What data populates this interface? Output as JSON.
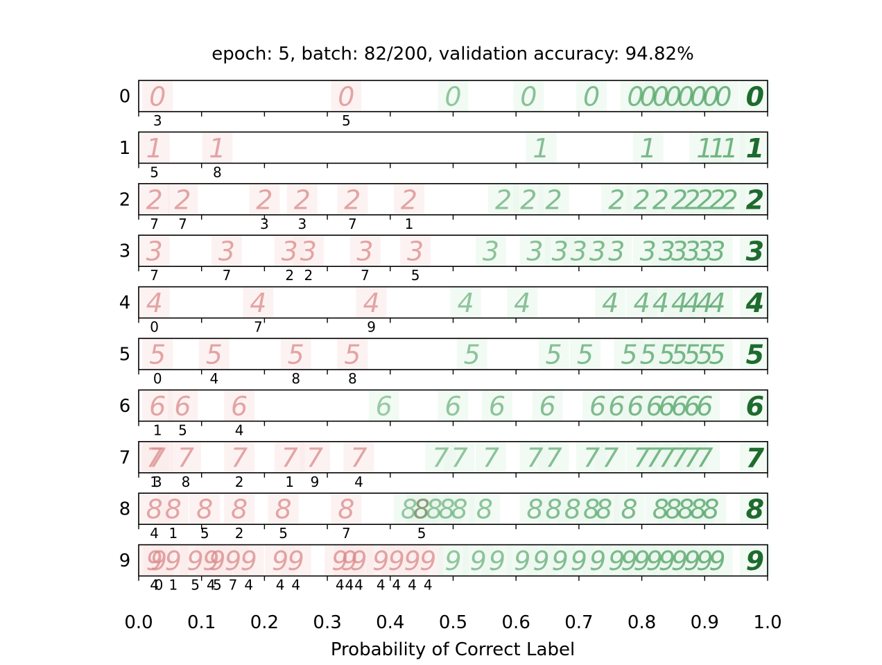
{
  "chart_data": {
    "type": "scatter",
    "title": "epoch: 5, batch: 82/200, validation accuracy: 94.82%",
    "xlabel": "Probability of Correct Label",
    "ylabel": "",
    "xlim": [
      0.0,
      1.0
    ],
    "x_ticks": [
      "0.0",
      "0.1",
      "0.2",
      "0.3",
      "0.4",
      "0.5",
      "0.6",
      "0.7",
      "0.8",
      "0.9",
      "1.0"
    ],
    "colors": {
      "wrong": "#d98a8a",
      "correct": "#3f9a56",
      "confident": "#1e6b2e"
    },
    "rows": [
      {
        "label": "0",
        "misclassified": [
          {
            "x": 0.03,
            "pred": "3"
          },
          {
            "x": 0.33,
            "pred": "5"
          }
        ],
        "correct_x": [
          0.5,
          0.62,
          0.72,
          0.79,
          0.81,
          0.83,
          0.85,
          0.87,
          0.89,
          0.91,
          0.93,
          0.98
        ]
      },
      {
        "label": "1",
        "misclassified": [
          {
            "x": 0.025,
            "pred": "5"
          },
          {
            "x": 0.125,
            "pred": "8"
          }
        ],
        "correct_x": [
          0.64,
          0.81,
          0.9,
          0.92,
          0.94,
          0.98
        ]
      },
      {
        "label": "2",
        "misclassified": [
          {
            "x": 0.025,
            "pred": "7"
          },
          {
            "x": 0.07,
            "pred": "7"
          },
          {
            "x": 0.2,
            "pred": "3"
          },
          {
            "x": 0.26,
            "pred": "3"
          },
          {
            "x": 0.34,
            "pred": "7"
          },
          {
            "x": 0.43,
            "pred": "1"
          }
        ],
        "correct_x": [
          0.58,
          0.62,
          0.66,
          0.76,
          0.8,
          0.83,
          0.86,
          0.88,
          0.9,
          0.92,
          0.94,
          0.98
        ]
      },
      {
        "label": "3",
        "misclassified": [
          {
            "x": 0.025,
            "pred": "7"
          },
          {
            "x": 0.14,
            "pred": "7"
          },
          {
            "x": 0.24,
            "pred": "2"
          },
          {
            "x": 0.27,
            "pred": "2"
          },
          {
            "x": 0.36,
            "pred": "7"
          },
          {
            "x": 0.44,
            "pred": "5"
          }
        ],
        "correct_x": [
          0.56,
          0.63,
          0.67,
          0.7,
          0.73,
          0.76,
          0.81,
          0.84,
          0.86,
          0.88,
          0.9,
          0.92,
          0.98
        ]
      },
      {
        "label": "4",
        "misclassified": [
          {
            "x": 0.025,
            "pred": "0"
          },
          {
            "x": 0.19,
            "pred": "7"
          },
          {
            "x": 0.37,
            "pred": "9"
          }
        ],
        "correct_x": [
          0.52,
          0.61,
          0.75,
          0.8,
          0.83,
          0.86,
          0.88,
          0.9,
          0.92,
          0.98
        ]
      },
      {
        "label": "5",
        "misclassified": [
          {
            "x": 0.03,
            "pred": "0"
          },
          {
            "x": 0.12,
            "pred": "4"
          },
          {
            "x": 0.25,
            "pred": "8"
          },
          {
            "x": 0.34,
            "pred": "8"
          }
        ],
        "correct_x": [
          0.53,
          0.66,
          0.71,
          0.78,
          0.81,
          0.84,
          0.86,
          0.88,
          0.9,
          0.92,
          0.98
        ]
      },
      {
        "label": "6",
        "misclassified": [
          {
            "x": 0.03,
            "pred": "1"
          },
          {
            "x": 0.07,
            "pred": "5"
          },
          {
            "x": 0.16,
            "pred": "4"
          }
        ],
        "correct_x": [
          0.39,
          0.5,
          0.57,
          0.65,
          0.73,
          0.76,
          0.79,
          0.82,
          0.84,
          0.86,
          0.88,
          0.9,
          0.98
        ]
      },
      {
        "label": "7",
        "misclassified": [
          {
            "x": 0.025,
            "pred": "1"
          },
          {
            "x": 0.03,
            "pred": "3"
          },
          {
            "x": 0.075,
            "pred": "8"
          },
          {
            "x": 0.16,
            "pred": "2"
          },
          {
            "x": 0.24,
            "pred": "1"
          },
          {
            "x": 0.28,
            "pred": "9"
          },
          {
            "x": 0.35,
            "pred": "4"
          }
        ],
        "correct_x": [
          0.48,
          0.51,
          0.56,
          0.63,
          0.66,
          0.72,
          0.75,
          0.8,
          0.82,
          0.84,
          0.86,
          0.88,
          0.9,
          0.98
        ]
      },
      {
        "label": "8",
        "misclassified": [
          {
            "x": 0.025,
            "pred": "4"
          },
          {
            "x": 0.055,
            "pred": "1"
          },
          {
            "x": 0.105,
            "pred": "5"
          },
          {
            "x": 0.16,
            "pred": "2"
          },
          {
            "x": 0.23,
            "pred": "5"
          },
          {
            "x": 0.33,
            "pred": "7"
          },
          {
            "x": 0.45,
            "pred": "5"
          }
        ],
        "correct_x": [
          0.43,
          0.45,
          0.47,
          0.49,
          0.51,
          0.55,
          0.63,
          0.66,
          0.69,
          0.72,
          0.74,
          0.78,
          0.83,
          0.85,
          0.87,
          0.89,
          0.91,
          0.98
        ]
      },
      {
        "label": "9",
        "misclassified": [
          {
            "x": 0.025,
            "pred": "4"
          },
          {
            "x": 0.032,
            "pred": "0"
          },
          {
            "x": 0.055,
            "pred": "1"
          },
          {
            "x": 0.09,
            "pred": "5"
          },
          {
            "x": 0.115,
            "pred": "4"
          },
          {
            "x": 0.125,
            "pred": "5"
          },
          {
            "x": 0.15,
            "pred": "7"
          },
          {
            "x": 0.175,
            "pred": "4"
          },
          {
            "x": 0.225,
            "pred": "4"
          },
          {
            "x": 0.25,
            "pred": "4"
          },
          {
            "x": 0.32,
            "pred": "4"
          },
          {
            "x": 0.335,
            "pred": "4"
          },
          {
            "x": 0.35,
            "pred": "4"
          },
          {
            "x": 0.385,
            "pred": "4"
          },
          {
            "x": 0.41,
            "pred": "4"
          },
          {
            "x": 0.435,
            "pred": "4"
          },
          {
            "x": 0.46,
            "pred": "4"
          }
        ],
        "correct_x": [
          0.5,
          0.54,
          0.57,
          0.61,
          0.64,
          0.67,
          0.7,
          0.73,
          0.76,
          0.78,
          0.8,
          0.82,
          0.84,
          0.86,
          0.88,
          0.9,
          0.92,
          0.98
        ]
      }
    ]
  }
}
